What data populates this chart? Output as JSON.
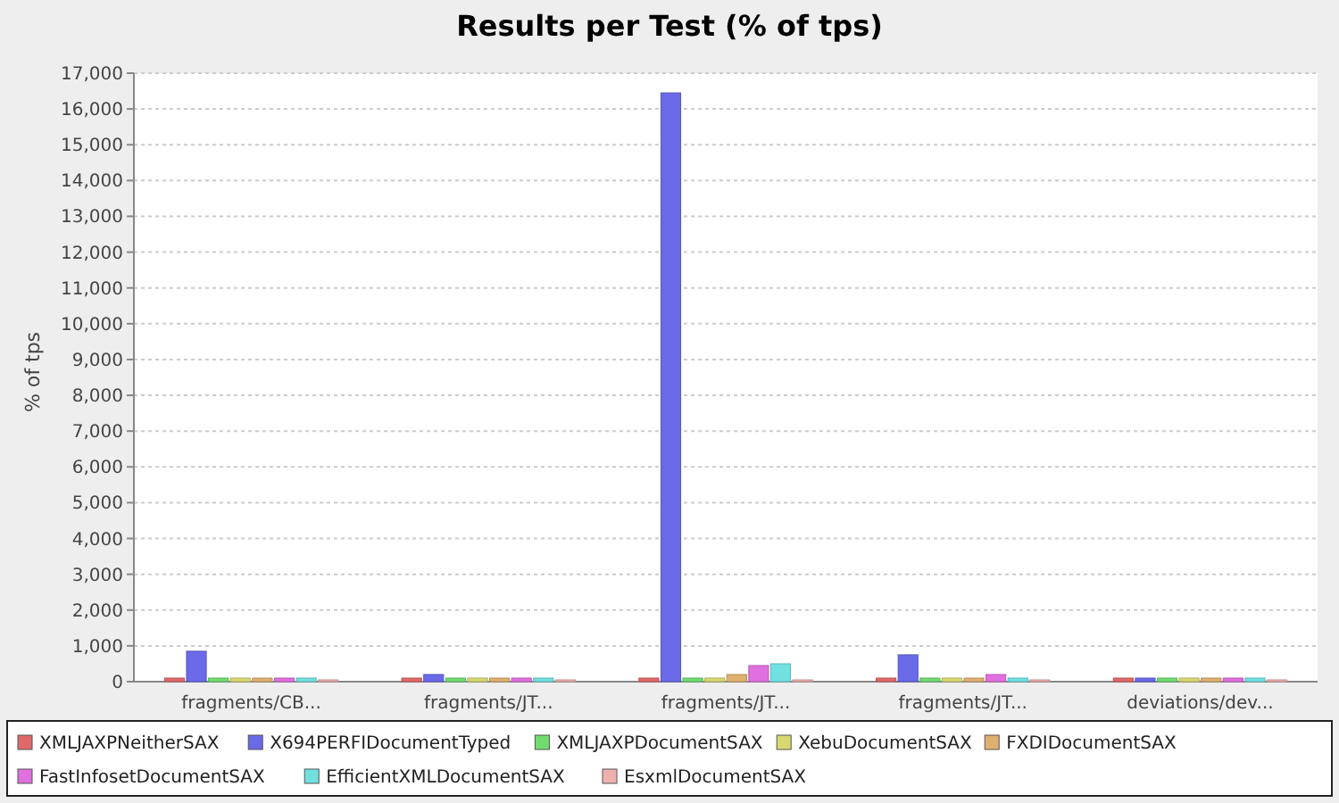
{
  "chart_data": {
    "type": "bar",
    "title": "Results per Test (% of tps)",
    "ylabel": "% of tps",
    "categories": [
      "fragments/CB...",
      "fragments/JT...",
      "fragments/JT...",
      "fragments/JT...",
      "deviations/dev..."
    ],
    "series": [
      {
        "name": "XMLJAXPNeitherSAX",
        "color": "#e06868",
        "values": [
          100,
          100,
          100,
          100,
          100
        ]
      },
      {
        "name": "X694PERFIDocumentTyped",
        "color": "#6a6ae8",
        "values": [
          850,
          200,
          16450,
          750,
          100
        ]
      },
      {
        "name": "XMLJAXPDocumentSAX",
        "color": "#70dc70",
        "values": [
          100,
          100,
          100,
          100,
          100
        ]
      },
      {
        "name": "XebuDocumentSAX",
        "color": "#d8d870",
        "values": [
          100,
          100,
          100,
          100,
          100
        ]
      },
      {
        "name": "FXDIDocumentSAX",
        "color": "#e0b070",
        "values": [
          100,
          100,
          200,
          100,
          100
        ]
      },
      {
        "name": "FastInfosetDocumentSAX",
        "color": "#e070e0",
        "values": [
          100,
          100,
          450,
          200,
          100
        ]
      },
      {
        "name": "EfficientXMLDocumentSAX",
        "color": "#70e0e0",
        "values": [
          100,
          100,
          500,
          100,
          100
        ]
      },
      {
        "name": "EsxmlDocumentSAX",
        "color": "#f0b0b0",
        "values": [
          50,
          50,
          50,
          50,
          50
        ]
      }
    ],
    "ylim": [
      0,
      17000
    ],
    "yticks": [
      {
        "value": 0,
        "label": "0"
      },
      {
        "value": 1000,
        "label": "1,000"
      },
      {
        "value": 2000,
        "label": "2,000"
      },
      {
        "value": 3000,
        "label": "3,000"
      },
      {
        "value": 4000,
        "label": "4,000"
      },
      {
        "value": 5000,
        "label": "5,000"
      },
      {
        "value": 6000,
        "label": "6,000"
      },
      {
        "value": 7000,
        "label": "7,000"
      },
      {
        "value": 8000,
        "label": "8,000"
      },
      {
        "value": 9000,
        "label": "9,000"
      },
      {
        "value": 10000,
        "label": "10,000"
      },
      {
        "value": 11000,
        "label": "11,000"
      },
      {
        "value": 12000,
        "label": "12,000"
      },
      {
        "value": 13000,
        "label": "13,000"
      },
      {
        "value": 14000,
        "label": "14,000"
      },
      {
        "value": 15000,
        "label": "15,000"
      },
      {
        "value": 16000,
        "label": "16,000"
      },
      {
        "value": 17000,
        "label": "17,000"
      }
    ],
    "grid": "y",
    "legend": "bottom"
  }
}
